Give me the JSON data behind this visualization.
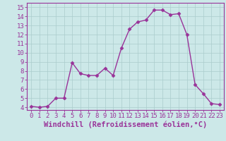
{
  "x": [
    0,
    1,
    2,
    3,
    4,
    5,
    6,
    7,
    8,
    9,
    10,
    11,
    12,
    13,
    14,
    15,
    16,
    17,
    18,
    19,
    20,
    21,
    22,
    23
  ],
  "y": [
    4.1,
    4.0,
    4.1,
    5.0,
    5.0,
    8.9,
    7.7,
    7.5,
    7.5,
    8.3,
    7.5,
    10.5,
    12.6,
    13.4,
    13.6,
    14.7,
    14.7,
    14.2,
    14.3,
    12.0,
    6.5,
    5.5,
    4.4,
    4.3
  ],
  "line_color": "#993399",
  "marker": "D",
  "markersize": 2.5,
  "linewidth": 1.0,
  "bg_color": "#cce8e8",
  "grid_color": "#aacccc",
  "xlabel": "Windchill (Refroidissement éolien,°C)",
  "xlabel_fontsize": 7.5,
  "ylabel_ticks": [
    4,
    5,
    6,
    7,
    8,
    9,
    10,
    11,
    12,
    13,
    14,
    15
  ],
  "xlim": [
    -0.5,
    23.5
  ],
  "ylim": [
    3.7,
    15.5
  ],
  "tick_fontsize": 6.5,
  "label_color": "#993399"
}
